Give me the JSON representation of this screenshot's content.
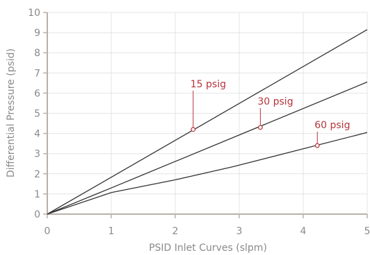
{
  "chart_data": {
    "type": "line",
    "title": "",
    "xlabel": "PSID Inlet Curves (slpm)",
    "ylabel": "Differential Pressure (psid)",
    "xlim": [
      0,
      5
    ],
    "ylim": [
      0,
      10
    ],
    "xticks": [
      0,
      1,
      2,
      3,
      4,
      5
    ],
    "yticks": [
      0,
      1,
      2,
      3,
      4,
      5,
      6,
      7,
      8,
      9,
      10
    ],
    "grid": true,
    "legend": "none",
    "colors": {
      "line": "#333333",
      "annotation": "#b5343a",
      "grid": "#e4e4e4",
      "axis": "#b9b1a8",
      "tick_text": "#8a8a8a"
    },
    "series": [
      {
        "name": "15 psig",
        "x": [
          0,
          5
        ],
        "y": [
          0,
          9.15
        ],
        "marker": {
          "x": 2.28,
          "y": 4.2
        }
      },
      {
        "name": "30 psig",
        "x": [
          0,
          1,
          5
        ],
        "y": [
          0,
          1.3,
          6.55
        ],
        "marker": {
          "x": 3.33,
          "y": 4.3
        }
      },
      {
        "name": "60 psig",
        "x": [
          0,
          1,
          2,
          2.9,
          5
        ],
        "y": [
          0,
          1.07,
          1.7,
          2.35,
          4.05
        ],
        "marker": {
          "x": 4.22,
          "y": 3.4
        }
      }
    ]
  }
}
